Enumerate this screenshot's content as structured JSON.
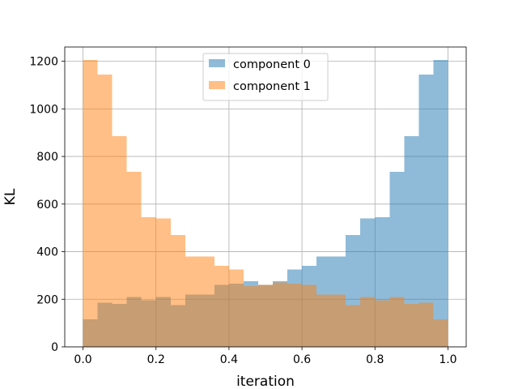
{
  "chart_data": {
    "type": "histogram",
    "title": "",
    "xlabel": "iteration",
    "ylabel": "KL",
    "xlim": [
      -0.05,
      1.05
    ],
    "ylim": [
      0,
      1260
    ],
    "xticks": [
      0.0,
      0.2,
      0.4,
      0.6,
      0.8,
      1.0
    ],
    "xtick_labels": [
      "0.0",
      "0.2",
      "0.4",
      "0.6",
      "0.8",
      "1.0"
    ],
    "yticks": [
      0,
      200,
      400,
      600,
      800,
      1000,
      1200
    ],
    "ytick_labels": [
      "0",
      "200",
      "400",
      "600",
      "800",
      "1000",
      "1200"
    ],
    "grid": true,
    "legend_position": "upper center",
    "bin_edges": [
      0.0,
      0.04,
      0.08,
      0.12,
      0.16,
      0.2,
      0.24,
      0.28,
      0.32,
      0.36,
      0.4,
      0.44,
      0.48,
      0.52,
      0.56,
      0.6,
      0.64,
      0.68,
      0.72,
      0.76,
      0.8,
      0.84,
      0.88,
      0.92,
      0.96,
      1.0
    ],
    "series": [
      {
        "name": "component 0",
        "color": "#1f77b4",
        "alpha": 0.5,
        "values": [
          115,
          185,
          180,
          210,
          195,
          210,
          175,
          220,
          220,
          260,
          265,
          275,
          260,
          275,
          325,
          340,
          380,
          380,
          470,
          540,
          545,
          735,
          885,
          1145,
          1205
        ]
      },
      {
        "name": "component 1",
        "color": "#ff7f0e",
        "alpha": 0.5,
        "values": [
          1205,
          1145,
          885,
          735,
          545,
          540,
          470,
          380,
          380,
          340,
          325,
          255,
          260,
          270,
          265,
          260,
          220,
          220,
          175,
          210,
          195,
          210,
          180,
          185,
          115
        ]
      }
    ]
  }
}
